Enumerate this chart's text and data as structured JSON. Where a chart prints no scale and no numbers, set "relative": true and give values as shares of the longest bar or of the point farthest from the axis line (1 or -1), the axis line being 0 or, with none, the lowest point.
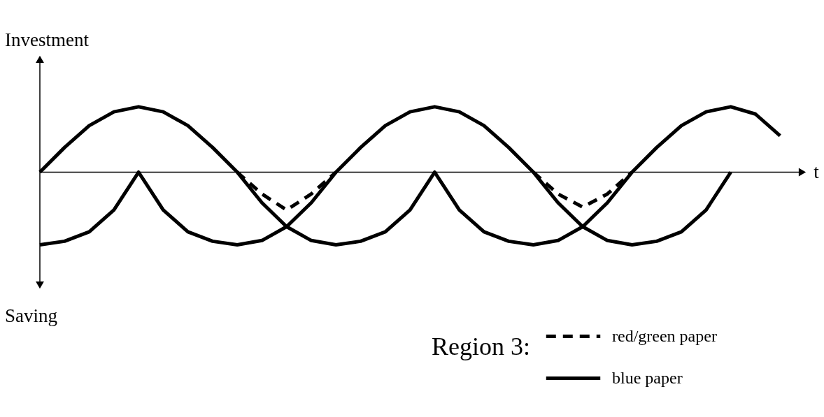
{
  "chart_data": {
    "type": "line",
    "relative": true,
    "xlabel": "t",
    "ylabel": "Investment",
    "annotations": [
      "Saving"
    ],
    "legend_title": "Region 3:",
    "legend": "bottom right",
    "categories": [
      null,
      null,
      null,
      null,
      null,
      null,
      null,
      null,
      null,
      null,
      null,
      null,
      null,
      null,
      null,
      null,
      null,
      null,
      null,
      null,
      null,
      null,
      null,
      null,
      null,
      null,
      null,
      null,
      null,
      null,
      null
    ],
    "series": [
      {
        "name": "red/green paper",
        "color": "#000000",
        "line_style": "dashed",
        "values": [
          null,
          null,
          null,
          null,
          null,
          null,
          null,
          null,
          0,
          -0.3,
          -0.52,
          -0.3,
          0,
          null,
          null,
          null,
          null,
          null,
          null,
          null,
          null,
          null,
          null,
          null,
          null,
          null,
          null,
          null,
          null,
          null,
          null
        ]
      },
      {
        "color": "#000000",
        "line_style": "dashed",
        "values": [
          null,
          null,
          null,
          null,
          null,
          null,
          null,
          null,
          null,
          null,
          null,
          null,
          null,
          null,
          null,
          null,
          null,
          null,
          null,
          null,
          0,
          -0.3,
          -0.48,
          -0.3,
          0,
          null,
          null,
          null,
          null,
          null,
          null
        ]
      },
      {
        "name": "blue paper",
        "color": "#000000",
        "values": [
          0,
          0.34,
          0.64,
          0.83,
          0.9,
          0.83,
          0.64,
          0.34,
          0,
          -0.42,
          -0.75,
          -0.94,
          -1,
          -0.95,
          -0.82,
          -0.52,
          0,
          -0.52,
          -0.82,
          -0.95,
          -1,
          -0.94,
          -0.75,
          -0.42,
          0,
          0.34,
          0.64,
          0.83,
          0.9,
          0.8,
          0.5
        ]
      },
      {
        "color": "#000000",
        "values": [
          -1,
          -0.95,
          -0.82,
          -0.52,
          0,
          -0.52,
          -0.82,
          -0.95,
          -1,
          -0.94,
          -0.75,
          -0.42,
          0,
          0.34,
          0.64,
          0.83,
          0.9,
          0.83,
          0.64,
          0.34,
          0,
          -0.42,
          -0.75,
          -0.94,
          -1,
          -0.95,
          -0.82,
          -0.52,
          0,
          null,
          null
        ]
      }
    ]
  }
}
